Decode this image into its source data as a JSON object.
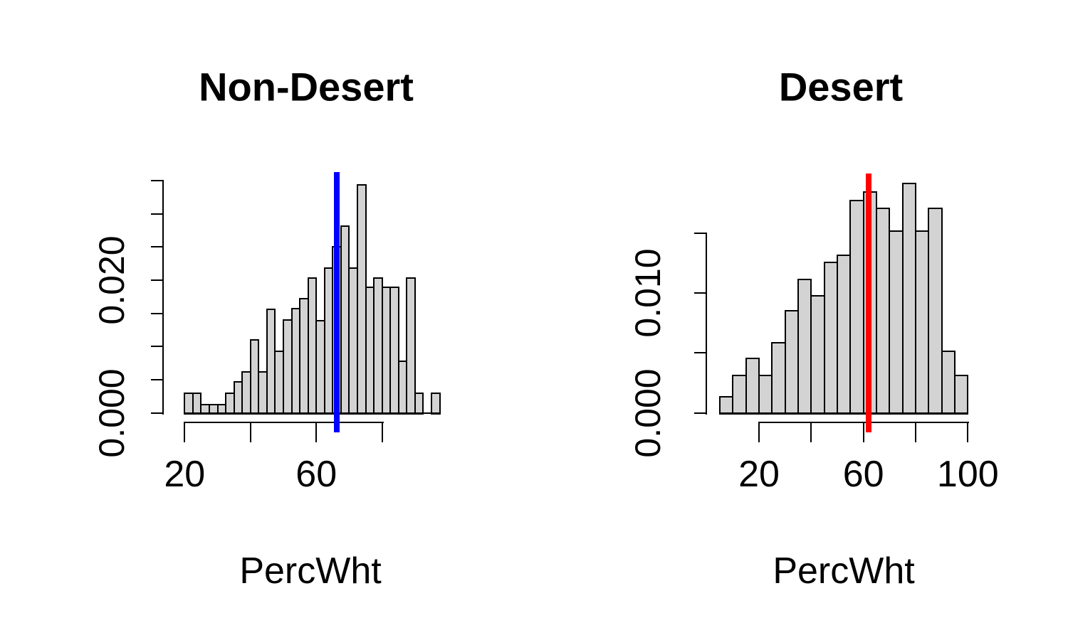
{
  "background": "#ffffff",
  "chart_data": [
    {
      "type": "histogram",
      "title": "Non-Desert",
      "xlabel": "PercWht",
      "bar_fill": "#d3d3d3",
      "bar_border": "#000000",
      "bin_start": 20,
      "bin_width": 2.5,
      "densities": [
        0.0031,
        0.0031,
        0.0014,
        0.0014,
        0.0014,
        0.0031,
        0.0048,
        0.0063,
        0.0111,
        0.0063,
        0.0157,
        0.0094,
        0.0141,
        0.0158,
        0.0173,
        0.0204,
        0.014,
        0.0219,
        0.0251,
        0.0282,
        0.0219,
        0.0345,
        0.019,
        0.0204,
        0.019,
        0.019,
        0.0079,
        0.0204,
        0.0031,
        0.0,
        0.0031
      ],
      "x_ticks": [
        20,
        40,
        60,
        80
      ],
      "x_tick_labels": [
        {
          "value": 20,
          "text": "20"
        },
        {
          "value": 60,
          "text": "60"
        }
      ],
      "y_ticks": [
        0,
        0.005,
        0.01,
        0.015,
        0.02,
        0.025,
        0.03,
        0.035
      ],
      "y_tick_labels": [
        {
          "value": 0,
          "text": "0.000"
        },
        {
          "value": 0.02,
          "text": "0.020"
        }
      ],
      "ylim": [
        0,
        0.035
      ],
      "mean_line": {
        "value": 66.2,
        "color": "#0000ff"
      }
    },
    {
      "type": "histogram",
      "title": "Desert",
      "xlabel": "PercWht",
      "bar_fill": "#d3d3d3",
      "bar_border": "#000000",
      "bin_start": 5,
      "bin_width": 5,
      "densities": [
        0.0014,
        0.0032,
        0.0046,
        0.0032,
        0.0059,
        0.0086,
        0.0112,
        0.0098,
        0.0126,
        0.0132,
        0.0178,
        0.0185,
        0.0171,
        0.0152,
        0.0192,
        0.0152,
        0.0171,
        0.0052,
        0.0032
      ],
      "x_ticks": [
        20,
        40,
        60,
        80,
        100
      ],
      "x_tick_labels": [
        {
          "value": 20,
          "text": "20"
        },
        {
          "value": 60,
          "text": "60"
        },
        {
          "value": 100,
          "text": "100"
        }
      ],
      "y_ticks": [
        0,
        0.005,
        0.01,
        0.015
      ],
      "y_tick_labels": [
        {
          "value": 0,
          "text": "0.000"
        },
        {
          "value": 0.01,
          "text": "0.010"
        }
      ],
      "ylim": [
        0,
        0.015
      ],
      "mean_line": {
        "value": 62.0,
        "color": "#ff0000"
      }
    }
  ]
}
